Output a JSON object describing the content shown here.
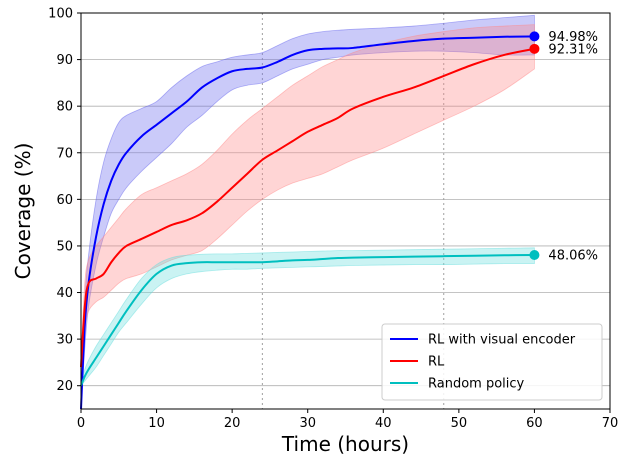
{
  "chart_data": {
    "type": "line",
    "xlabel": "Time (hours)",
    "ylabel": "Coverage (%)",
    "xlim": [
      0,
      70
    ],
    "ylim": [
      15,
      100
    ],
    "xticks": [
      0,
      10,
      20,
      30,
      40,
      50,
      60,
      70
    ],
    "yticks": [
      20,
      30,
      40,
      50,
      60,
      70,
      80,
      90,
      100
    ],
    "grid": "horizontal",
    "vertical_reference_lines": [
      24,
      48
    ],
    "legend": {
      "location": "lower-right"
    },
    "series": [
      {
        "name": "RL with visual encoder",
        "color": "#0000ff",
        "band_color": "#6666ee",
        "end_label": "94.98%",
        "x": [
          0,
          0.5,
          1,
          2,
          3,
          4,
          5,
          6,
          8,
          10,
          12,
          14,
          16,
          18,
          20,
          22,
          24,
          26,
          28,
          30,
          32,
          34,
          36,
          40,
          44,
          48,
          52,
          56,
          60
        ],
        "y": [
          15,
          33,
          42,
          52,
          59,
          64,
          67.5,
          70,
          73.5,
          76,
          78.5,
          81,
          84,
          86,
          87.5,
          88,
          88.3,
          89.5,
          91,
          92,
          92.3,
          92.4,
          92.5,
          93.3,
          94,
          94.5,
          94.7,
          94.9,
          94.98
        ],
        "lower": [
          15,
          28,
          37,
          46,
          52,
          57,
          60,
          62.5,
          66,
          69,
          72,
          75.5,
          78,
          81,
          83.5,
          84.5,
          85,
          86.5,
          88,
          89,
          90,
          90.5,
          91,
          91.5,
          91.8,
          91.8,
          91.5,
          91,
          91
        ],
        "upper": [
          15,
          38,
          48,
          60,
          68,
          73,
          76.5,
          78,
          79.5,
          81,
          84,
          86.5,
          88.5,
          89.5,
          90.5,
          91,
          91.5,
          93,
          94.5,
          95.5,
          96,
          96.3,
          96.5,
          96.8,
          97.2,
          97.8,
          98.5,
          99,
          99.5
        ]
      },
      {
        "name": "RL",
        "color": "#ff0000",
        "band_color": "#ff8888",
        "end_label": "92.31%",
        "x": [
          0,
          0.5,
          1,
          2,
          3,
          4,
          5,
          6,
          8,
          10,
          12,
          14,
          16,
          18,
          20,
          22,
          24,
          26,
          28,
          30,
          32,
          34,
          36,
          40,
          44,
          48,
          52,
          56,
          60
        ],
        "y": [
          24,
          37,
          42,
          43,
          44,
          46.5,
          48.5,
          50,
          51.5,
          53,
          54.5,
          55.5,
          57,
          59.5,
          62.5,
          65.5,
          68.5,
          70.5,
          72.5,
          74.5,
          76,
          77.5,
          79.5,
          82,
          84,
          86.5,
          89,
          91,
          92.31
        ],
        "lower": [
          22,
          32,
          36,
          38,
          39,
          40.5,
          42,
          43,
          44,
          45.5,
          47,
          48,
          49,
          51.5,
          54.5,
          57.5,
          60,
          62,
          63.5,
          64.5,
          65.5,
          67,
          68.5,
          71,
          74,
          77,
          80,
          83.5,
          88
        ],
        "upper": [
          26,
          42,
          47,
          50,
          52,
          54,
          56,
          58,
          61,
          62.5,
          64,
          65.5,
          67.5,
          70.5,
          74,
          77,
          79.5,
          82,
          84.5,
          86.5,
          88.5,
          90,
          91.5,
          93.5,
          95,
          96,
          96.8,
          97.2,
          97.5
        ]
      },
      {
        "name": "Random policy",
        "color": "#00bfbf",
        "band_color": "#66dddd",
        "end_label": "48.06%",
        "x": [
          0,
          0.5,
          1,
          2,
          3,
          4,
          5,
          6,
          8,
          10,
          12,
          14,
          16,
          18,
          20,
          22,
          24,
          26,
          28,
          30,
          32,
          34,
          36,
          40,
          44,
          48,
          52,
          56,
          60
        ],
        "y": [
          20,
          22,
          23.5,
          26,
          28.5,
          31,
          33.5,
          36,
          40.5,
          44,
          45.8,
          46.3,
          46.5,
          46.5,
          46.5,
          46.5,
          46.5,
          46.7,
          46.9,
          47,
          47.2,
          47.4,
          47.5,
          47.6,
          47.7,
          47.8,
          47.9,
          48,
          48.06
        ],
        "lower": [
          20,
          21,
          22,
          24,
          26.5,
          29,
          31.5,
          33.5,
          37.5,
          41,
          43,
          44,
          44.5,
          44.8,
          45,
          45,
          45.2,
          45.3,
          45.4,
          45.5,
          45.6,
          45.7,
          45.8,
          45.9,
          46,
          46,
          46.1,
          46.2,
          46.2
        ],
        "upper": [
          21,
          23.5,
          25.5,
          28.5,
          31,
          33.5,
          36,
          38.5,
          43,
          46,
          47.5,
          48,
          48.2,
          48.3,
          48.3,
          48.4,
          48.5,
          48.6,
          48.7,
          48.8,
          48.9,
          49,
          49,
          49.1,
          49.2,
          49.3,
          49.4,
          49.5,
          49.6
        ]
      }
    ]
  }
}
